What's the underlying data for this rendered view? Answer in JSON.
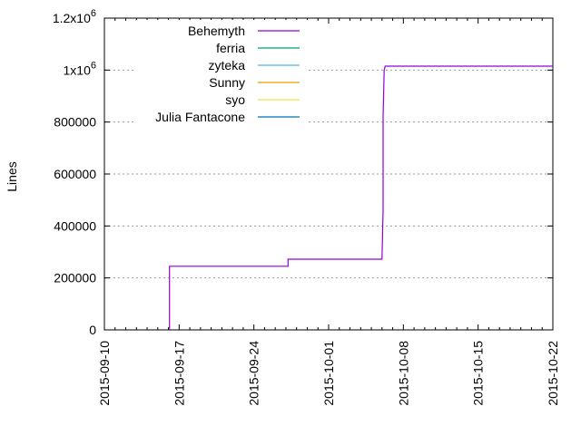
{
  "chart_data": {
    "type": "line",
    "title": "",
    "xlabel": "",
    "ylabel": "Lines",
    "x_start": "2015-09-10",
    "x_end": "2015-10-22",
    "xlim_days": [
      0,
      42
    ],
    "ylim": [
      0,
      1200000
    ],
    "grid": "y-dotted",
    "legend_position": "top-left-inside",
    "y_ticks": [
      {
        "value": 0,
        "label": "0"
      },
      {
        "value": 200000,
        "label": "200000"
      },
      {
        "value": 400000,
        "label": "400000"
      },
      {
        "value": 600000,
        "label": "600000"
      },
      {
        "value": 800000,
        "label": "800000"
      },
      {
        "value": 1000000,
        "label": "1x10",
        "exp": "6"
      },
      {
        "value": 1200000,
        "label": "1.2x10",
        "exp": "6"
      }
    ],
    "x_ticks": [
      {
        "day": 0,
        "label": "2015-09-10"
      },
      {
        "day": 7,
        "label": "2015-09-17"
      },
      {
        "day": 14,
        "label": "2015-09-24"
      },
      {
        "day": 21,
        "label": "2015-10-01"
      },
      {
        "day": 28,
        "label": "2015-10-08"
      },
      {
        "day": 35,
        "label": "2015-10-15"
      },
      {
        "day": 42,
        "label": "2015-10-22"
      }
    ],
    "series": [
      {
        "name": "Behemyth",
        "color": "#9400d3",
        "points": [
          [
            6.1,
            0
          ],
          [
            6.1,
            245000
          ],
          [
            17.2,
            245000
          ],
          [
            17.2,
            272000
          ],
          [
            26.0,
            272000
          ],
          [
            26.1,
            460000
          ],
          [
            26.1,
            820000
          ],
          [
            26.2,
            1000000
          ],
          [
            26.3,
            1015000
          ],
          [
            42,
            1015000
          ]
        ]
      },
      {
        "name": "ferria",
        "color": "#009e73",
        "points": []
      },
      {
        "name": "zyteka",
        "color": "#56b4e9",
        "points": []
      },
      {
        "name": "Sunny",
        "color": "#e69f00",
        "points": []
      },
      {
        "name": "syo",
        "color": "#f0e442",
        "points": []
      },
      {
        "name": "Julia Fantacone",
        "color": "#0072b2",
        "points": []
      }
    ]
  }
}
